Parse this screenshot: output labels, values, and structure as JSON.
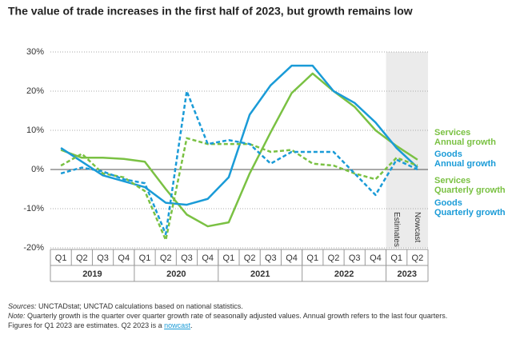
{
  "chart_data": {
    "type": "line",
    "title": "The value of trade increases in the first half of 2023, but growth remains low",
    "categories": [
      "Q1",
      "Q2",
      "Q3",
      "Q4",
      "Q1",
      "Q2",
      "Q3",
      "Q4",
      "Q1",
      "Q2",
      "Q3",
      "Q4",
      "Q1",
      "Q2",
      "Q3",
      "Q4",
      "Q1",
      "Q2"
    ],
    "years": [
      {
        "label": "2019",
        "count": 4
      },
      {
        "label": "2020",
        "count": 4
      },
      {
        "label": "2021",
        "count": 4
      },
      {
        "label": "2022",
        "count": 4
      },
      {
        "label": "2023",
        "count": 2
      }
    ],
    "shaded_labels": [
      "Estimates",
      "Nowcast"
    ],
    "series": [
      {
        "name": "Services\nAnnual growth",
        "color": "#7ac143",
        "dashed": false,
        "values": [
          5,
          3,
          3,
          2.7,
          2,
          -5,
          -11.5,
          -14.5,
          -13.5,
          -1,
          9.5,
          19.5,
          24.5,
          20,
          16,
          10,
          6,
          2.5
        ]
      },
      {
        "name": "Goods\nAnnual growth",
        "color": "#1a9bd7",
        "dashed": false,
        "values": [
          5.5,
          2,
          -1.5,
          -3,
          -4.5,
          -8.5,
          -9,
          -7.5,
          -2,
          14,
          21.5,
          26.5,
          26.5,
          20,
          17,
          12,
          5.5,
          0.5
        ]
      },
      {
        "name": "Services\nQuarterly growth",
        "color": "#7ac143",
        "dashed": true,
        "values": [
          1,
          4,
          -1,
          -2,
          -5.5,
          -18,
          8,
          6.5,
          6.5,
          6.5,
          4.5,
          5,
          1.5,
          1,
          -1,
          -2.5,
          3,
          1
        ]
      },
      {
        "name": "Goods\nQuarterly growth",
        "color": "#1a9bd7",
        "dashed": true,
        "values": [
          -1,
          0.5,
          -0.5,
          -2.5,
          -3.5,
          -16.5,
          20,
          6.5,
          7.5,
          6.5,
          1.5,
          4.5,
          4.5,
          4.5,
          -1,
          -6.5,
          2.5,
          0
        ]
      }
    ],
    "ylim": [
      -20,
      30
    ],
    "yticks": [
      {
        "value": -20,
        "label": "-20%"
      },
      {
        "value": -10,
        "label": "-10%"
      },
      {
        "value": 0,
        "label": "0%"
      },
      {
        "value": 10,
        "label": "10%"
      },
      {
        "value": 20,
        "label": "20%"
      },
      {
        "value": 30,
        "label": "30%"
      }
    ],
    "grid": true,
    "notes": {
      "sources_label": "Sources:",
      "sources": " UNCTADstat; UNCTAD calculations based on national statistics.",
      "note_label": "Note:",
      "note": " Quarterly growth is the quarter over quarter growth rate of seasonally adjusted values. Annual growth refers to the last four quarters.",
      "note2": "Figures for Q1 2023 are estimates. Q2 2023 is a ",
      "link": "nowcast",
      "end": "."
    }
  }
}
